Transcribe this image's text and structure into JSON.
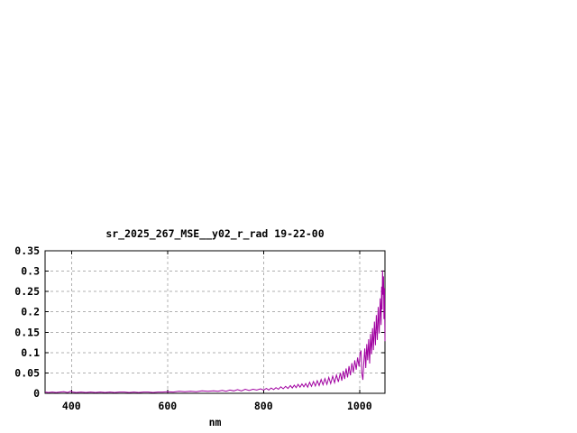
{
  "window": {
    "background": "#ffffff"
  },
  "chart_data": {
    "type": "line",
    "title": "sr_2025_267_MSE__y02_r_rad 19-22-00",
    "xlabel": "nm",
    "ylabel": "",
    "xlim": [
      345,
      1053
    ],
    "ylim": [
      0,
      0.35
    ],
    "x_ticks": {
      "values": [
        400,
        600,
        800,
        1000
      ],
      "labels": [
        "400",
        "600",
        "800",
        "1000"
      ]
    },
    "y_ticks": {
      "values": [
        0,
        0.05,
        0.1,
        0.15,
        0.2,
        0.25,
        0.3,
        0.35
      ],
      "labels": [
        "0",
        "0.05",
        "0.1",
        "0.15",
        "0.2",
        "0.25",
        "0.3",
        "0.35"
      ]
    },
    "grid": true,
    "legend": "none",
    "colors": {
      "line": "#a000a0",
      "grid": "#b0b0b0",
      "axis": "#000000",
      "text": "#000000",
      "background": "#ffffff"
    },
    "series": [
      {
        "name": "sr_2025_267_MSE__y02_r_rad",
        "points": [
          [
            345,
            0.003
          ],
          [
            352,
            0.002
          ],
          [
            360,
            0.003
          ],
          [
            368,
            0.002
          ],
          [
            376,
            0.003
          ],
          [
            384,
            0.004
          ],
          [
            392,
            0.002
          ],
          [
            399,
            0.005
          ],
          [
            402,
            0.003
          ],
          [
            410,
            0.002
          ],
          [
            420,
            0.003
          ],
          [
            430,
            0.002
          ],
          [
            440,
            0.003
          ],
          [
            450,
            0.002
          ],
          [
            460,
            0.003
          ],
          [
            470,
            0.002
          ],
          [
            480,
            0.003
          ],
          [
            490,
            0.002
          ],
          [
            500,
            0.003
          ],
          [
            510,
            0.003
          ],
          [
            520,
            0.002
          ],
          [
            530,
            0.003
          ],
          [
            540,
            0.002
          ],
          [
            550,
            0.003
          ],
          [
            560,
            0.003
          ],
          [
            570,
            0.002
          ],
          [
            580,
            0.003
          ],
          [
            590,
            0.003
          ],
          [
            600,
            0.004
          ],
          [
            612,
            0.003
          ],
          [
            624,
            0.005
          ],
          [
            636,
            0.004
          ],
          [
            648,
            0.005
          ],
          [
            660,
            0.004
          ],
          [
            672,
            0.006
          ],
          [
            684,
            0.005
          ],
          [
            696,
            0.006
          ],
          [
            705,
            0.005
          ],
          [
            714,
            0.007
          ],
          [
            722,
            0.005
          ],
          [
            730,
            0.008
          ],
          [
            738,
            0.006
          ],
          [
            746,
            0.009
          ],
          [
            754,
            0.006
          ],
          [
            762,
            0.01
          ],
          [
            770,
            0.007
          ],
          [
            778,
            0.01
          ],
          [
            786,
            0.008
          ],
          [
            794,
            0.011
          ],
          [
            800,
            0.008
          ],
          [
            806,
            0.012
          ],
          [
            811,
            0.008
          ],
          [
            816,
            0.013
          ],
          [
            821,
            0.009
          ],
          [
            826,
            0.014
          ],
          [
            831,
            0.01
          ],
          [
            836,
            0.016
          ],
          [
            841,
            0.011
          ],
          [
            846,
            0.017
          ],
          [
            851,
            0.012
          ],
          [
            856,
            0.019
          ],
          [
            860,
            0.013
          ],
          [
            864,
            0.02
          ],
          [
            868,
            0.014
          ],
          [
            872,
            0.022
          ],
          [
            876,
            0.015
          ],
          [
            880,
            0.023
          ],
          [
            884,
            0.016
          ],
          [
            888,
            0.024
          ],
          [
            892,
            0.015
          ],
          [
            896,
            0.027
          ],
          [
            900,
            0.017
          ],
          [
            904,
            0.029
          ],
          [
            908,
            0.018
          ],
          [
            912,
            0.031
          ],
          [
            916,
            0.019
          ],
          [
            920,
            0.034
          ],
          [
            924,
            0.021
          ],
          [
            928,
            0.036
          ],
          [
            932,
            0.022
          ],
          [
            936,
            0.039
          ],
          [
            940,
            0.024
          ],
          [
            944,
            0.042
          ],
          [
            948,
            0.026
          ],
          [
            952,
            0.045
          ],
          [
            956,
            0.028
          ],
          [
            960,
            0.05
          ],
          [
            963,
            0.031
          ],
          [
            966,
            0.055
          ],
          [
            969,
            0.035
          ],
          [
            972,
            0.061
          ],
          [
            975,
            0.039
          ],
          [
            978,
            0.067
          ],
          [
            981,
            0.044
          ],
          [
            984,
            0.074
          ],
          [
            987,
            0.051
          ],
          [
            990,
            0.081
          ],
          [
            993,
            0.058
          ],
          [
            996,
            0.088
          ],
          [
            999,
            0.066
          ],
          [
            1001,
            0.098
          ],
          [
            1003,
            0.105
          ],
          [
            1005,
            0.048
          ],
          [
            1007,
            0.033
          ],
          [
            1009,
            0.078
          ],
          [
            1011,
            0.11
          ],
          [
            1013,
            0.062
          ],
          [
            1015,
            0.121
          ],
          [
            1017,
            0.081
          ],
          [
            1019,
            0.133
          ],
          [
            1021,
            0.073
          ],
          [
            1023,
            0.146
          ],
          [
            1025,
            0.096
          ],
          [
            1027,
            0.16
          ],
          [
            1029,
            0.106
          ],
          [
            1031,
            0.176
          ],
          [
            1033,
            0.118
          ],
          [
            1035,
            0.192
          ],
          [
            1037,
            0.131
          ],
          [
            1039,
            0.212
          ],
          [
            1041,
            0.147
          ],
          [
            1043,
            0.233
          ],
          [
            1045,
            0.168
          ],
          [
            1046,
            0.262
          ],
          [
            1047,
            0.206
          ],
          [
            1048,
            0.302
          ],
          [
            1049,
            0.242
          ],
          [
            1050,
            0.287
          ],
          [
            1051,
            0.182
          ],
          [
            1052,
            0.258
          ],
          [
            1053,
            0.128
          ]
        ]
      }
    ]
  }
}
